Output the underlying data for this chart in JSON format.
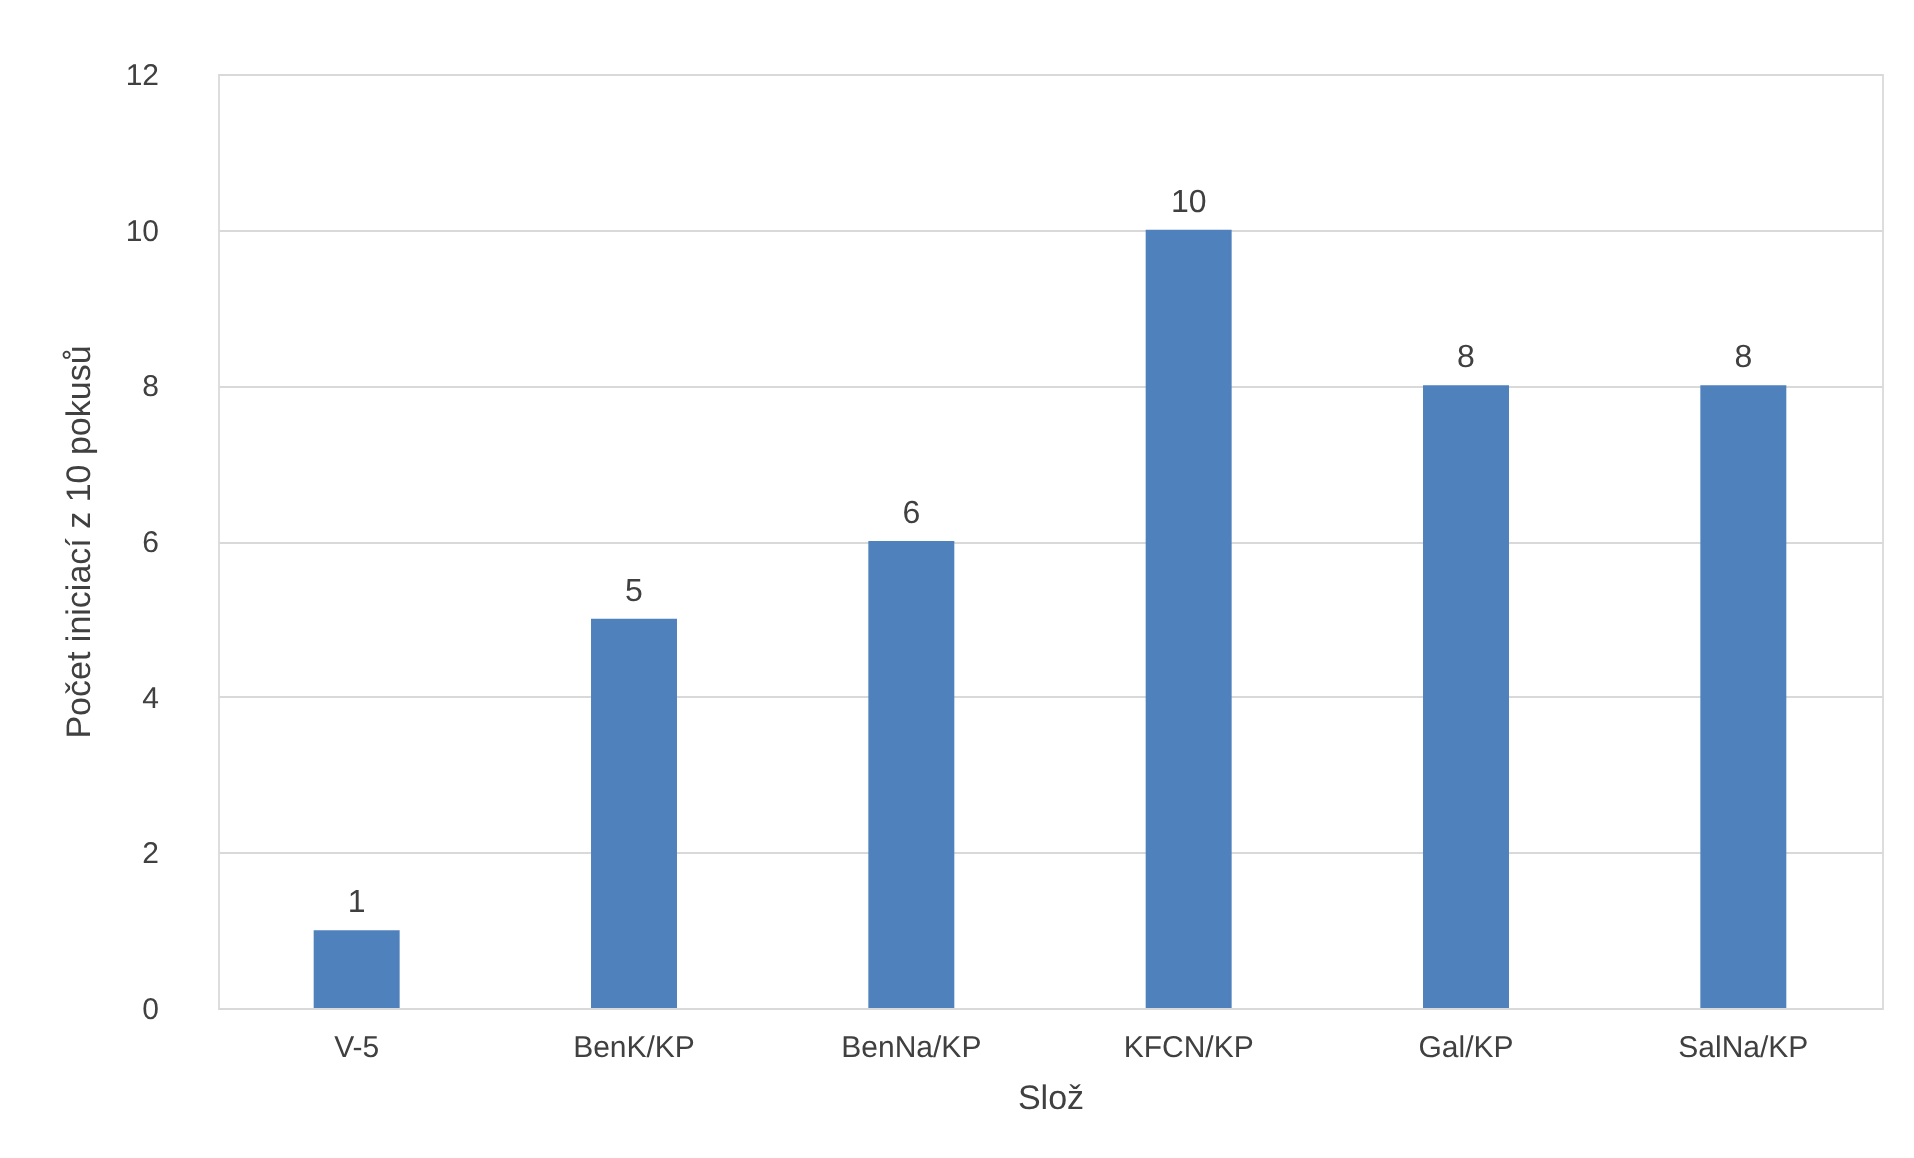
{
  "chart_data": {
    "type": "bar",
    "xlabel": "Slož",
    "ylabel": "Počet iniciací z 10 pokusů",
    "categories": [
      "V-5",
      "BenK/KP",
      "BenNa/KP",
      "KFCN/KP",
      "Gal/KP",
      "SalNa/KP"
    ],
    "values": [
      1,
      5,
      6,
      10,
      8,
      8
    ],
    "color": "#4f81bd",
    "ylim": [
      0,
      12
    ],
    "yticks": [
      0,
      2,
      4,
      6,
      8,
      10,
      12
    ],
    "grid": "y",
    "data_labels": true
  }
}
